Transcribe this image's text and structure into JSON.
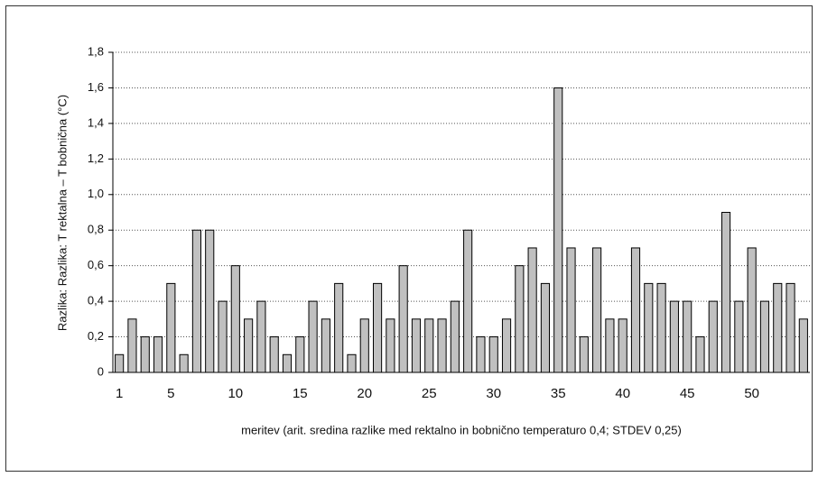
{
  "chart_data": {
    "type": "bar",
    "y_label": "Razlika: Razlika: T rektalna – T bobnična (°C)",
    "x_label": "meritev (arit. sredina razlike med rektalno in bobnično temperaturo 0,4; STDEV 0,25)",
    "categories": [
      "1",
      null,
      null,
      null,
      "5",
      null,
      null,
      null,
      null,
      "10",
      null,
      null,
      null,
      null,
      "15",
      null,
      null,
      null,
      null,
      "20",
      null,
      null,
      null,
      null,
      "25",
      null,
      null,
      null,
      null,
      "30",
      null,
      null,
      null,
      null,
      "35",
      null,
      null,
      null,
      null,
      "40",
      null,
      null,
      null,
      null,
      "45",
      null,
      null,
      null,
      null,
      "50",
      null,
      null,
      null,
      null
    ],
    "values": [
      0.1,
      0.3,
      0.2,
      0.2,
      0.5,
      0.1,
      0.8,
      0.8,
      0.4,
      0.6,
      0.3,
      0.4,
      0.2,
      0.1,
      0.2,
      0.4,
      0.3,
      0.5,
      0.1,
      0.3,
      0.5,
      0.3,
      0.6,
      0.3,
      0.3,
      0.3,
      0.4,
      0.8,
      0.2,
      0.2,
      0.3,
      0.6,
      0.7,
      0.5,
      1.6,
      0.7,
      0.2,
      0.7,
      0.3,
      0.3,
      0.7,
      0.5,
      0.5,
      0.4,
      0.4,
      0.2,
      0.4,
      0.9,
      0.4,
      0.7,
      0.4,
      0.5,
      0.5,
      0.3
    ],
    "color": "#c0c0c0",
    "ylim": [
      0,
      1.8
    ],
    "yticks": [
      0,
      {
        "value": 0.2,
        "label": "0,2"
      },
      {
        "value": 0.4,
        "label": "0,4"
      },
      {
        "value": 0.6,
        "label": "0,6"
      },
      {
        "value": 0.8,
        "label": "0,8"
      },
      {
        "value": 1.0,
        "label": "1,0"
      },
      {
        "value": 1.2,
        "label": "1,2"
      },
      {
        "value": 1.4,
        "label": "1,4"
      },
      {
        "value": 1.6,
        "label": "1,6"
      },
      {
        "value": 1.8,
        "label": "1,8"
      }
    ],
    "grid": true
  }
}
